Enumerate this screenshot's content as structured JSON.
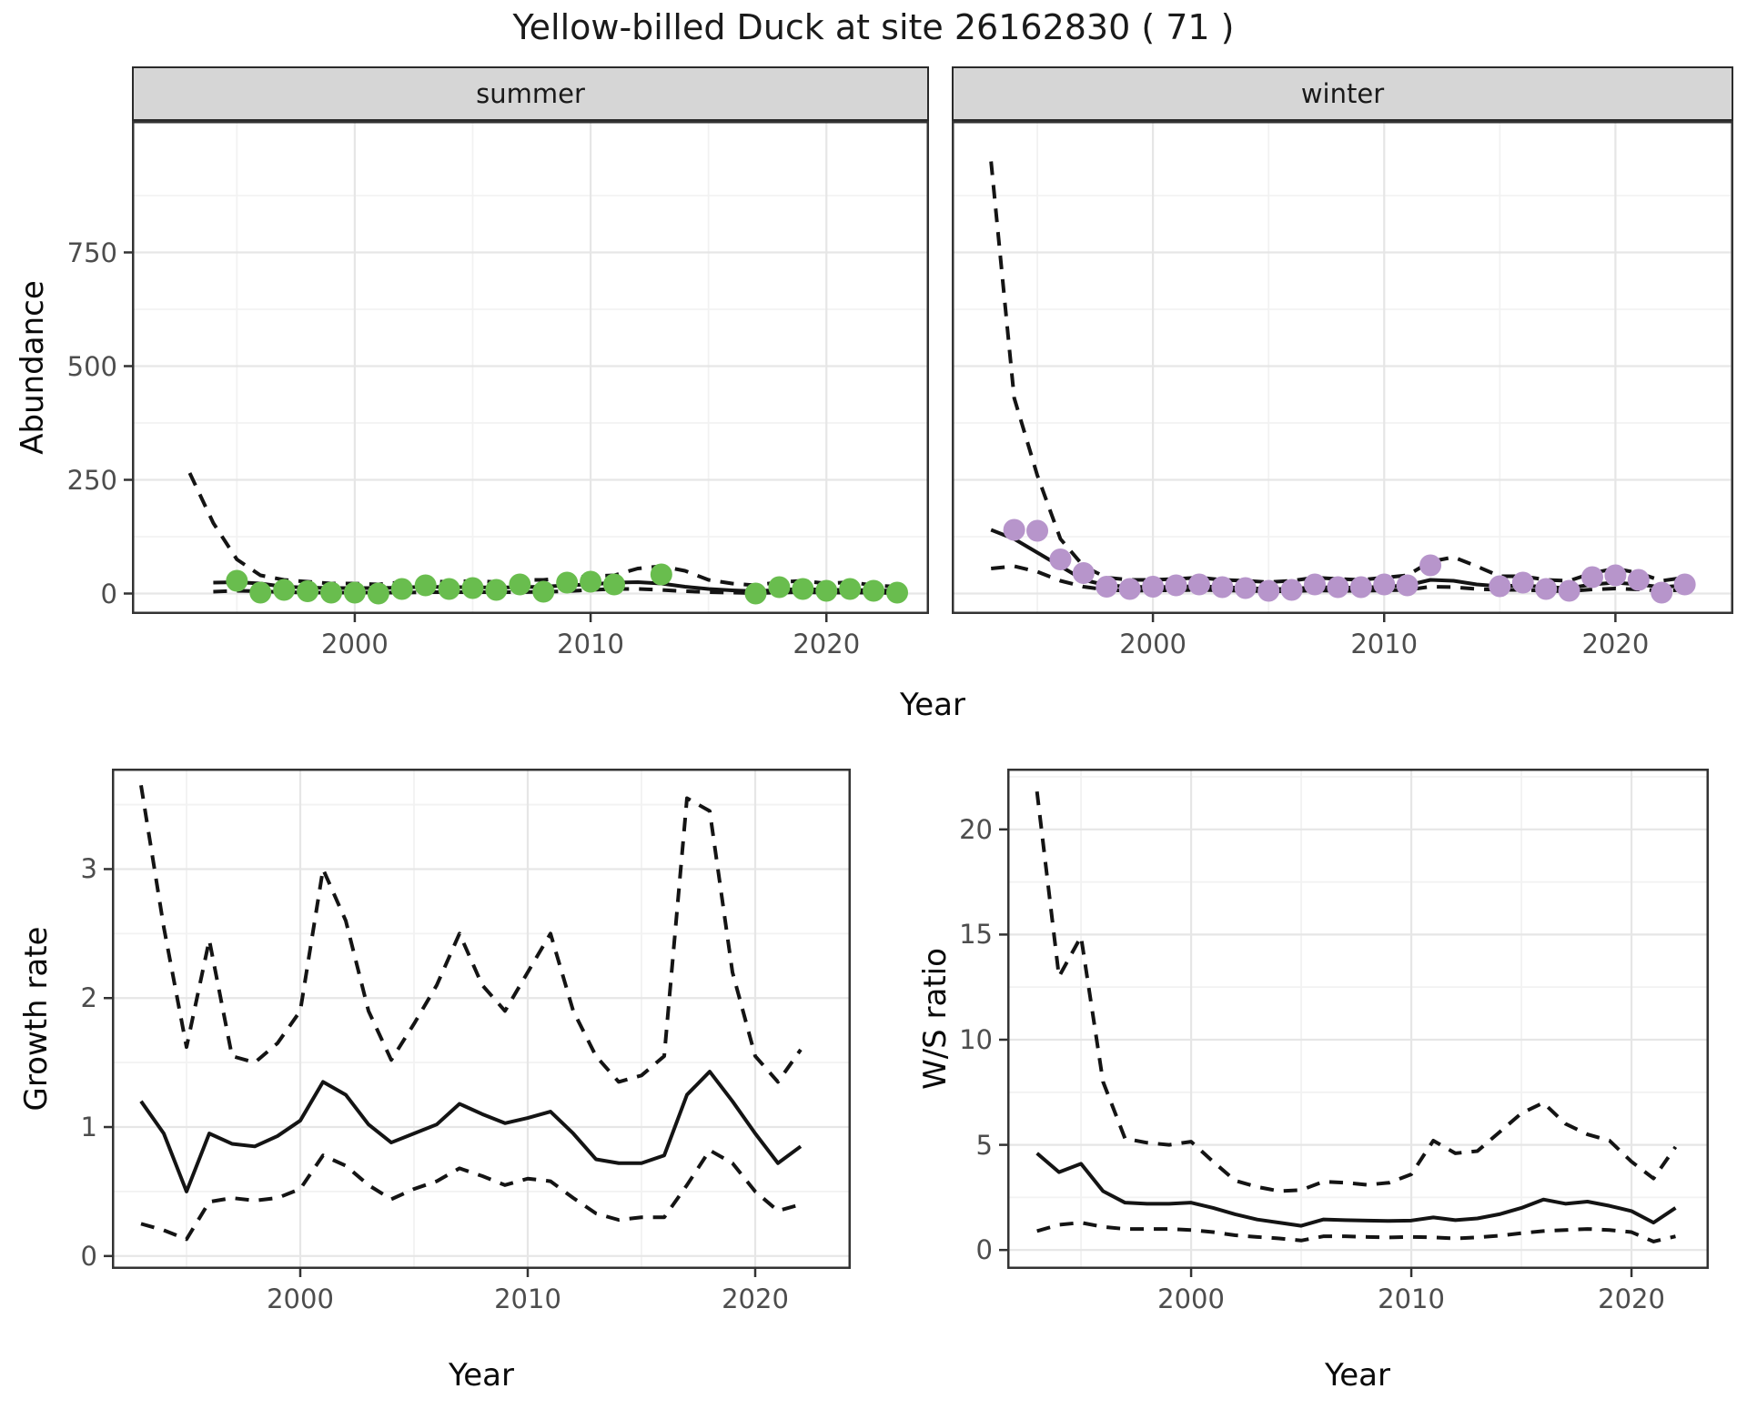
{
  "labels": {
    "title": "Yellow-billed Duck at site 26162830 ( 71 )",
    "facet_summer": "summer",
    "facet_winter": "winter",
    "y_abundance": "Abundance",
    "y_growth": "Growth rate",
    "y_ws": "W/S ratio",
    "x_year": "Year"
  },
  "colors": {
    "summer_point": "#69bd4e",
    "winter_point": "#b795cb",
    "line": "#141414",
    "grid_major": "#e6e6e6",
    "grid_minor": "#f2f2f2",
    "border": "#333333",
    "strip_bg": "#d6d6d6",
    "strip_border": "#2a2a2a",
    "tick_text": "#4d4d4d",
    "title_text": "#1a1a1a",
    "axis_text": "#0a0a0a"
  },
  "chart_data": [
    {
      "type": "line+scatter",
      "name": "abundance-summer",
      "facet": "summer",
      "ylabel": "Abundance",
      "xlabel": "Year",
      "xlim": [
        1990.55,
        2024.35
      ],
      "ylim": [
        -45,
        1039
      ],
      "xticks": [
        2000,
        2010,
        2020
      ],
      "xminor": [
        1995,
        2005,
        2015
      ],
      "yticks": [
        0,
        250,
        500,
        750
      ],
      "yminor": [
        125,
        375,
        625,
        875
      ],
      "show_y_axis": true,
      "point_color": "summer_point",
      "mean": {
        "x0": 1994,
        "y": [
          24,
          25,
          22,
          15,
          13,
          12,
          12,
          12,
          13,
          15,
          14,
          14,
          13,
          14,
          15,
          18,
          20,
          24,
          25,
          22,
          15,
          10,
          7,
          5,
          8,
          10,
          8,
          8,
          7,
          6
        ]
      },
      "upper": {
        "x0": 1993,
        "y": [
          265,
          155,
          75,
          40,
          30,
          26,
          22,
          22,
          20,
          25,
          28,
          25,
          28,
          25,
          30,
          30,
          35,
          38,
          40,
          55,
          60,
          50,
          30,
          22,
          18,
          25,
          28,
          22,
          25,
          18,
          15
        ]
      },
      "lower": {
        "x0": 1994,
        "y": [
          4,
          6,
          5,
          3,
          2,
          2,
          2,
          2,
          2,
          3,
          3,
          3,
          3,
          3,
          4,
          5,
          8,
          10,
          10,
          8,
          5,
          3,
          2,
          1,
          2,
          3,
          2,
          2,
          2,
          1
        ]
      },
      "points": {
        "x": [
          1995,
          1996,
          1997,
          1998,
          1999,
          2000,
          2001,
          2002,
          2003,
          2004,
          2005,
          2006,
          2007,
          2008,
          2009,
          2010,
          2011,
          2013,
          2017,
          2018,
          2019,
          2020,
          2021,
          2022,
          2023
        ],
        "y": [
          28,
          2,
          8,
          5,
          2,
          2,
          0,
          10,
          18,
          10,
          12,
          8,
          20,
          4,
          24,
          26,
          20,
          42,
          0,
          14,
          10,
          6,
          10,
          6,
          2
        ]
      }
    },
    {
      "type": "line+scatter",
      "name": "abundance-winter",
      "facet": "winter",
      "ylabel": "Abundance",
      "xlabel": "Year",
      "xlim": [
        1991.3,
        2025.1
      ],
      "ylim": [
        -45,
        1039
      ],
      "xticks": [
        2000,
        2010,
        2020
      ],
      "xminor": [
        1995,
        2005,
        2015,
        2025
      ],
      "yticks": [
        0,
        250,
        500,
        750
      ],
      "yminor": [
        125,
        375,
        625,
        875
      ],
      "show_y_axis": false,
      "point_color": "winter_point",
      "mean": {
        "x0": 1993,
        "y": [
          140,
          120,
          90,
          60,
          30,
          18,
          15,
          14,
          15,
          16,
          14,
          12,
          10,
          10,
          14,
          13,
          13,
          15,
          18,
          30,
          28,
          20,
          16,
          18,
          14,
          12,
          20,
          24,
          20,
          14,
          18
        ]
      },
      "upper": {
        "x0": 1993,
        "y": [
          950,
          430,
          260,
          120,
          60,
          35,
          30,
          30,
          32,
          35,
          30,
          28,
          25,
          28,
          35,
          32,
          30,
          35,
          40,
          70,
          80,
          60,
          38,
          38,
          30,
          28,
          45,
          55,
          45,
          28,
          35
        ]
      },
      "lower": {
        "x0": 1993,
        "y": [
          55,
          60,
          48,
          28,
          15,
          8,
          6,
          7,
          7,
          8,
          7,
          6,
          5,
          5,
          7,
          6,
          6,
          7,
          8,
          15,
          14,
          10,
          8,
          8,
          6,
          5,
          9,
          11,
          9,
          6,
          8
        ]
      },
      "points": {
        "x": [
          1994,
          1995,
          1996,
          1997,
          1998,
          1999,
          2000,
          2001,
          2002,
          2003,
          2004,
          2005,
          2006,
          2007,
          2008,
          2009,
          2010,
          2011,
          2012,
          2015,
          2016,
          2017,
          2018,
          2019,
          2020,
          2021,
          2022,
          2023
        ],
        "y": [
          140,
          138,
          75,
          45,
          15,
          10,
          15,
          18,
          20,
          14,
          12,
          6,
          8,
          20,
          14,
          14,
          20,
          18,
          62,
          16,
          24,
          10,
          6,
          36,
          40,
          30,
          2,
          20
        ]
      }
    },
    {
      "type": "line",
      "name": "growth-rate",
      "ylabel": "Growth rate",
      "xlabel": "Year",
      "xlim": [
        1991.72,
        2024.2
      ],
      "ylim": [
        -0.1,
        3.779
      ],
      "xticks": [
        2000,
        2010,
        2020
      ],
      "xminor": [
        1995,
        2005,
        2015
      ],
      "yticks": [
        0,
        1,
        2,
        3
      ],
      "yminor": [
        0.5,
        1.5,
        2.5,
        3.5
      ],
      "show_y_axis": true,
      "mean": {
        "x0": 1993,
        "y": [
          1.2,
          0.95,
          0.5,
          0.95,
          0.87,
          0.85,
          0.93,
          1.05,
          1.35,
          1.25,
          1.02,
          0.88,
          0.95,
          1.02,
          1.18,
          1.1,
          1.03,
          1.07,
          1.12,
          0.95,
          0.75,
          0.72,
          0.72,
          0.78,
          1.25,
          1.43,
          1.2,
          0.95,
          0.72,
          0.85
        ]
      },
      "upper": {
        "x0": 1993,
        "y": [
          3.65,
          2.55,
          1.62,
          2.45,
          1.55,
          1.5,
          1.65,
          1.9,
          3.0,
          2.6,
          1.9,
          1.52,
          1.8,
          2.1,
          2.5,
          2.1,
          1.9,
          2.2,
          2.5,
          1.9,
          1.55,
          1.35,
          1.4,
          1.55,
          3.55,
          3.45,
          2.2,
          1.55,
          1.35,
          1.6
        ]
      },
      "lower": {
        "x0": 1993,
        "y": [
          0.25,
          0.2,
          0.13,
          0.42,
          0.45,
          0.43,
          0.45,
          0.52,
          0.78,
          0.7,
          0.55,
          0.44,
          0.52,
          0.58,
          0.68,
          0.62,
          0.55,
          0.6,
          0.58,
          0.45,
          0.33,
          0.28,
          0.3,
          0.3,
          0.55,
          0.82,
          0.72,
          0.5,
          0.35,
          0.4
        ]
      }
    },
    {
      "type": "line",
      "name": "ws-ratio",
      "ylabel": "W/S ratio",
      "xlabel": "Year",
      "xlim": [
        1991.65,
        2023.51
      ],
      "ylim": [
        -0.9,
        22.89
      ],
      "xticks": [
        2000,
        2010,
        2020
      ],
      "xminor": [
        1995,
        2005,
        2015
      ],
      "yticks": [
        0,
        5,
        10,
        15,
        20
      ],
      "yminor": [
        2.5,
        7.5,
        12.5,
        17.5,
        22.5
      ],
      "show_y_axis": true,
      "mean": {
        "x0": 1993,
        "y": [
          4.6,
          3.7,
          4.1,
          2.8,
          2.25,
          2.2,
          2.2,
          2.25,
          2.0,
          1.7,
          1.45,
          1.3,
          1.15,
          1.45,
          1.42,
          1.4,
          1.38,
          1.4,
          1.55,
          1.42,
          1.5,
          1.7,
          2.0,
          2.4,
          2.2,
          2.3,
          2.1,
          1.85,
          1.3,
          2.0
        ]
      },
      "upper": {
        "x0": 1993,
        "y": [
          21.8,
          13.0,
          14.9,
          8.0,
          5.3,
          5.1,
          5.0,
          5.15,
          4.2,
          3.3,
          3.0,
          2.8,
          2.85,
          3.25,
          3.2,
          3.1,
          3.2,
          3.6,
          5.2,
          4.6,
          4.7,
          5.6,
          6.5,
          7.0,
          6.0,
          5.5,
          5.2,
          4.2,
          3.4,
          4.9
        ]
      },
      "lower": {
        "x0": 1993,
        "y": [
          0.9,
          1.2,
          1.3,
          1.1,
          1.0,
          1.0,
          1.0,
          0.95,
          0.85,
          0.7,
          0.62,
          0.55,
          0.45,
          0.65,
          0.65,
          0.62,
          0.6,
          0.62,
          0.6,
          0.55,
          0.6,
          0.68,
          0.8,
          0.9,
          0.95,
          1.0,
          0.95,
          0.85,
          0.4,
          0.65
        ]
      }
    }
  ]
}
